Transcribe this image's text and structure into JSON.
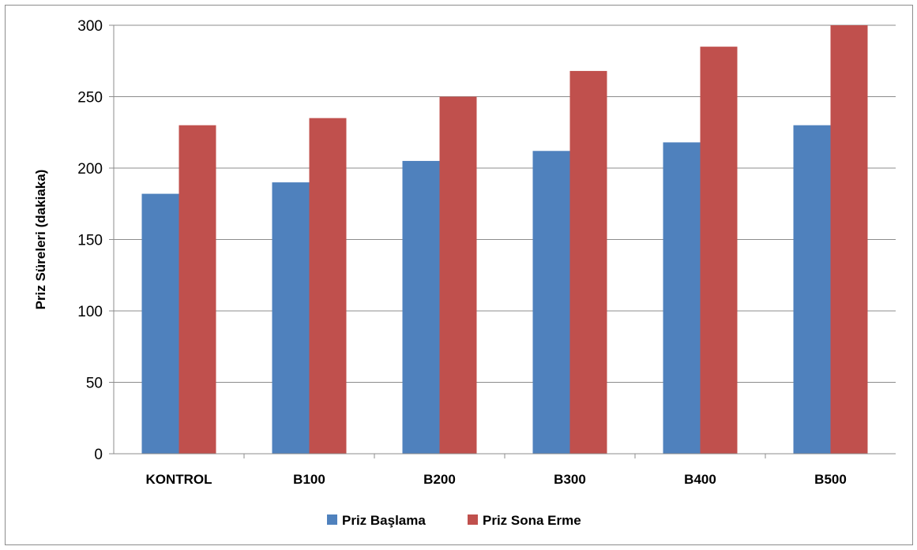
{
  "chart_data": {
    "type": "bar",
    "categories": [
      "KONTROL",
      "B100",
      "B200",
      "B300",
      "B400",
      "B500"
    ],
    "series": [
      {
        "name": "Priz Başlama",
        "values": [
          182,
          190,
          205,
          212,
          218,
          230
        ],
        "color": "#4f81bd"
      },
      {
        "name": "Priz Sona Erme",
        "values": [
          230,
          235,
          250,
          268,
          285,
          300
        ],
        "color": "#c0504d"
      }
    ],
    "title": "",
    "xlabel": "",
    "ylabel": "Priz Süreleri (dakiaka)",
    "ylim": [
      0,
      300
    ],
    "yticks": [
      0,
      50,
      100,
      150,
      200,
      250,
      300
    ],
    "grid": true,
    "legend_position": "bottom"
  }
}
